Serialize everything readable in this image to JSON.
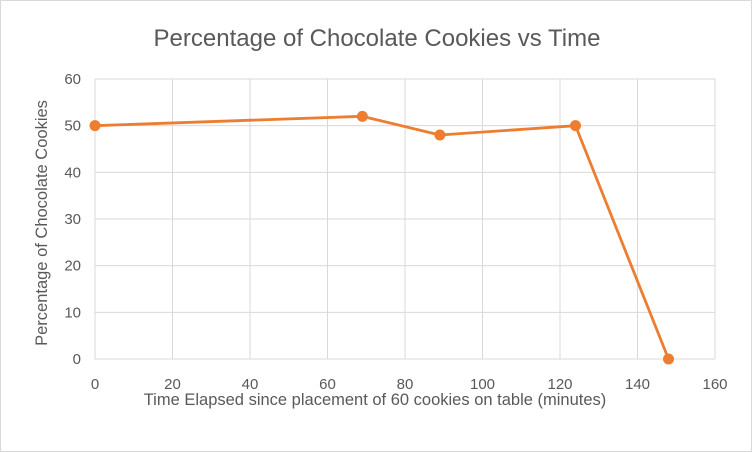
{
  "chart_data": {
    "type": "line",
    "title": "Percentage of Chocolate Cookies vs Time",
    "xlabel": "Time Elapsed since placement of 60 cookies on table (minutes)",
    "ylabel": "Percentage of Chocolate Cookies",
    "xlim": [
      0,
      160
    ],
    "ylim": [
      0,
      60
    ],
    "xticks": [
      0,
      20,
      40,
      60,
      80,
      100,
      120,
      140,
      160
    ],
    "yticks": [
      0,
      10,
      20,
      30,
      40,
      50,
      60
    ],
    "grid": true,
    "legend": "none",
    "series": [
      {
        "x": [
          0,
          69,
          89,
          124,
          148
        ],
        "y": [
          50,
          52,
          48,
          50,
          0
        ],
        "color": "#ED7D31",
        "markers": true
      }
    ]
  }
}
